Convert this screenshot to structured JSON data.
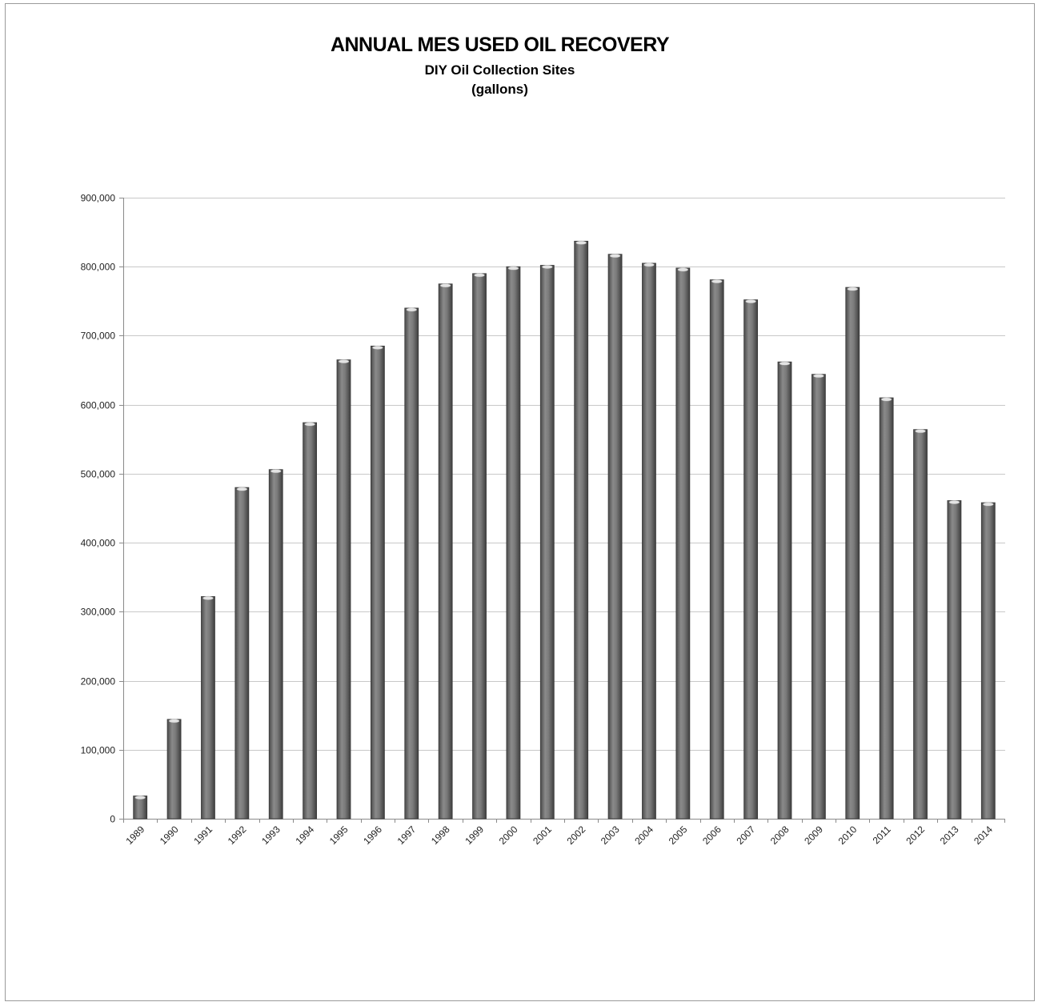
{
  "chart_data": {
    "type": "bar",
    "title": "ANNUAL MES USED OIL RECOVERY",
    "subtitle": "DIY Oil Collection Sites",
    "units": "(gallons)",
    "xlabel": "",
    "ylabel": "",
    "ylim": [
      0,
      900000
    ],
    "yticks": [
      "0",
      "100,000",
      "200,000",
      "300,000",
      "400,000",
      "500,000",
      "600,000",
      "700,000",
      "800,000",
      "900,000"
    ],
    "ytick_values": [
      0,
      100000,
      200000,
      300000,
      400000,
      500000,
      600000,
      700000,
      800000,
      900000
    ],
    "categories": [
      "1989",
      "1990",
      "1991",
      "1992",
      "1993",
      "1994",
      "1995",
      "1996",
      "1997",
      "1998",
      "1999",
      "2000",
      "2001",
      "2002",
      "2003",
      "2004",
      "2005",
      "2006",
      "2007",
      "2008",
      "2009",
      "2010",
      "2011",
      "2012",
      "2013",
      "2014"
    ],
    "values": [
      33000,
      144000,
      322000,
      480000,
      506000,
      574000,
      665000,
      685000,
      740000,
      775000,
      790000,
      800000,
      802000,
      837000,
      818000,
      805000,
      798000,
      781000,
      752000,
      662000,
      644000,
      770000,
      610000,
      564000,
      461000,
      458000
    ],
    "grid": true,
    "legend": "none",
    "bar_color": "#6e6e6e"
  }
}
